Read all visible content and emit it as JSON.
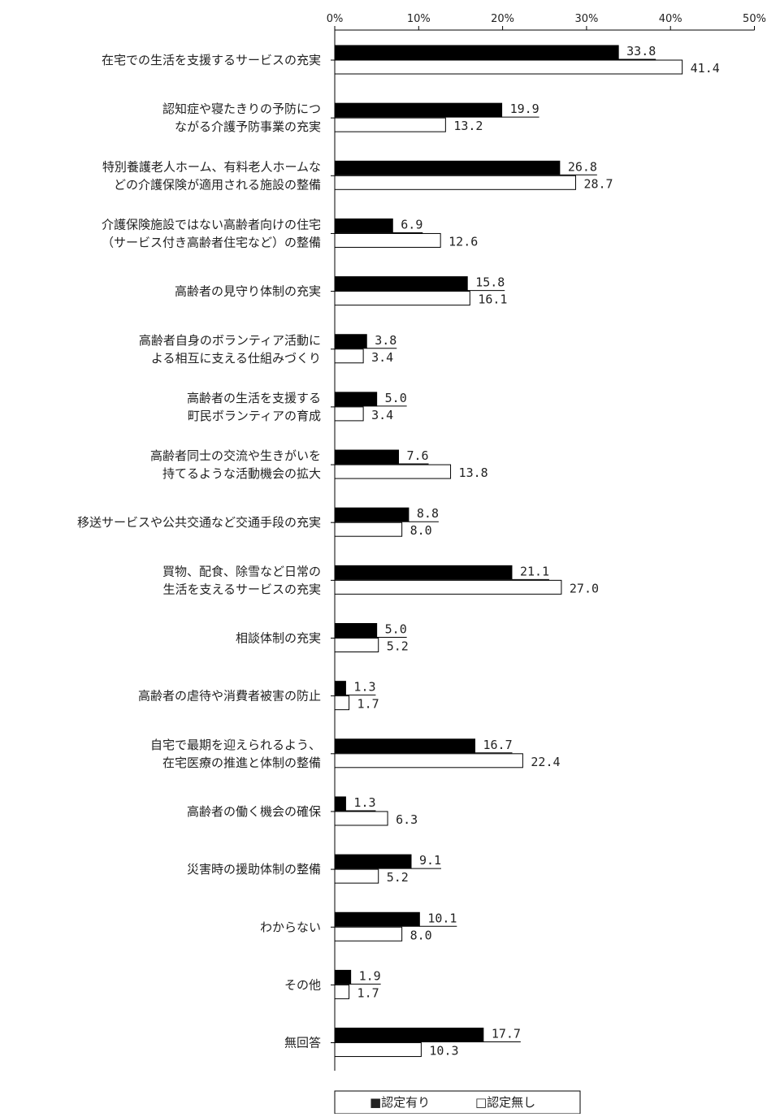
{
  "chart_data": {
    "type": "bar",
    "orientation": "horizontal",
    "xlim": [
      0,
      50
    ],
    "xticks": [
      "0%",
      "10%",
      "20%",
      "30%",
      "40%",
      "50%"
    ],
    "legend_position": "bottom",
    "categories": [
      [
        "在宅での生活を支援するサービスの充実"
      ],
      [
        "認知症や寝たきりの予防につ",
        "ながる介護予防事業の充実"
      ],
      [
        "特別養護老人ホーム、有料老人ホームな",
        "どの介護保険が適用される施設の整備"
      ],
      [
        "介護保険施設ではない高齢者向けの住宅",
        "（サービス付き高齢者住宅など）の整備"
      ],
      [
        "高齢者の見守り体制の充実"
      ],
      [
        "高齢者自身のボランティア活動に",
        "よる相互に支える仕組みづくり"
      ],
      [
        "高齢者の生活を支援する",
        "町民ボランティアの育成"
      ],
      [
        "高齢者同士の交流や生きがいを",
        "持てるような活動機会の拡大"
      ],
      [
        "移送サービスや公共交通など交通手段の充実"
      ],
      [
        "買物、配食、除雪など日常の",
        "生活を支えるサービスの充実"
      ],
      [
        "相談体制の充実"
      ],
      [
        "高齢者の虐待や消費者被害の防止"
      ],
      [
        "自宅で最期を迎えられるよう、",
        "在宅医療の推進と体制の整備"
      ],
      [
        "高齢者の働く機会の確保"
      ],
      [
        "災害時の援助体制の整備"
      ],
      [
        "わからない"
      ],
      [
        "その他"
      ],
      [
        "無回答"
      ]
    ],
    "series": [
      {
        "name": "■認定有り",
        "color": "#000000",
        "values": [
          33.8,
          19.9,
          26.8,
          6.9,
          15.8,
          3.8,
          5.0,
          7.6,
          8.8,
          21.1,
          5.0,
          1.3,
          16.7,
          1.3,
          9.1,
          10.1,
          1.9,
          17.7
        ],
        "labels": [
          "33.8",
          "19.9",
          "26.8",
          "6.9",
          "15.8",
          "3.8",
          "5.0",
          "7.6",
          "8.8",
          "21.1",
          "5.0",
          "1.3",
          "16.7",
          "1.3",
          "9.1",
          "10.1",
          "1.9",
          "17.7"
        ]
      },
      {
        "name": "□認定無し",
        "color": "#ffffff",
        "values": [
          41.4,
          13.2,
          28.7,
          12.6,
          16.1,
          3.4,
          3.4,
          13.8,
          8.0,
          27.0,
          5.2,
          1.7,
          22.4,
          6.3,
          5.2,
          8.0,
          1.7,
          10.3
        ],
        "labels": [
          "41.4",
          "13.2",
          "28.7",
          "12.6",
          "16.1",
          "3.4",
          "3.4",
          "13.8",
          "8.0",
          "27.0",
          "5.2",
          "1.7",
          "22.4",
          "6.3",
          "5.2",
          "8.0",
          "1.7",
          "10.3"
        ]
      }
    ]
  }
}
